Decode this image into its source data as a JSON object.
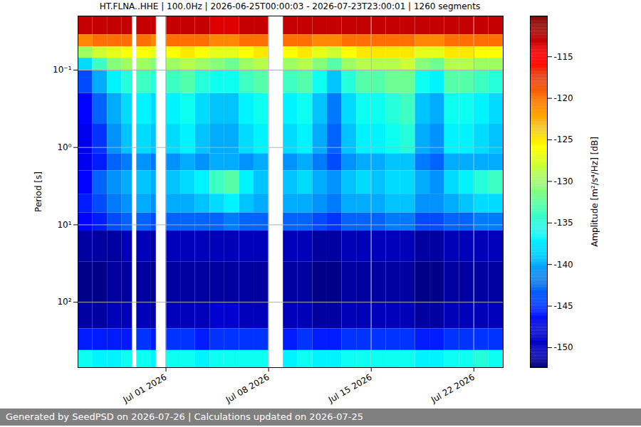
{
  "chart_data": {
    "type": "heatmap",
    "title": "HT.FLNA..HHE | 100.0Hz | 2026-06-25T00:00:03 - 2026-07-23T23:00:01 | 1260 segments",
    "caption": "Generated by SeedPSD on 2026-07-26 | Calculations updated on 2026-07-25",
    "y_label": "Period [s]",
    "log": "y",
    "grid": true,
    "xlim": [
      "2026-06-25",
      "2026-07-24"
    ],
    "xticks": [
      {
        "value": "2026-07-01",
        "label": "Jul 01 2026"
      },
      {
        "value": "2026-07-08",
        "label": "Jul 08 2026"
      },
      {
        "value": "2026-07-15",
        "label": "Jul 15 2026"
      },
      {
        "value": "2026-07-22",
        "label": "Jul 22 2026"
      }
    ],
    "ylim": [
      0.02,
      700
    ],
    "yticks": [
      {
        "value": 0.1,
        "label": "10⁻¹"
      },
      {
        "value": 1,
        "label": "10⁰"
      },
      {
        "value": 10,
        "label": "10¹"
      },
      {
        "value": 100,
        "label": "10²"
      }
    ],
    "x_bins": [
      "2026-06-25",
      "2026-06-26",
      "2026-06-27",
      "2026-06-28",
      "2026-06-28T17:00Z",
      "2026-06-29",
      "2026-06-30",
      "2026-06-30T08:00Z",
      "2026-07-01",
      "2026-07-02",
      "2026-07-03",
      "2026-07-04",
      "2026-07-05",
      "2026-07-06",
      "2026-07-07",
      "2026-07-08",
      "2026-07-09",
      "2026-07-10",
      "2026-07-11",
      "2026-07-12",
      "2026-07-13",
      "2026-07-14",
      "2026-07-15",
      "2026-07-16",
      "2026-07-17",
      "2026-07-18",
      "2026-07-19",
      "2026-07-20",
      "2026-07-21",
      "2026-07-22",
      "2026-07-23",
      "2026-07-24"
    ],
    "y_bins": [
      0.02,
      0.035,
      0.05,
      0.07,
      0.1,
      0.2,
      0.5,
      1.2,
      2,
      4,
      7,
      12,
      30,
      100,
      220,
      420,
      700
    ],
    "values": [
      [
        -113,
        -121,
        -130,
        -138,
        -144,
        -147,
        -148,
        -148,
        -147,
        -146,
        -147,
        -151,
        -152,
        -151,
        -146,
        -136
      ],
      [
        -113,
        -120,
        -128,
        -134,
        -140,
        -143,
        -145,
        -146,
        -143,
        -144,
        -146,
        -151,
        -152,
        -151,
        -146,
        -137
      ],
      [
        -113,
        -120,
        -127,
        -131,
        -137,
        -140,
        -141,
        -143,
        -141,
        -142,
        -144,
        -151,
        -151,
        -150,
        -146,
        -137
      ],
      [
        -113,
        -120,
        -126,
        -130,
        -135,
        -138,
        -139,
        -142,
        -140,
        -141,
        -143,
        -150,
        -151,
        -150,
        -146,
        -136
      ],
      null,
      [
        -113,
        -120,
        -126,
        -130,
        -134,
        -137,
        -138,
        -141,
        -139,
        -140,
        -143,
        -150,
        -151,
        -150,
        -145,
        -136
      ],
      [
        -113,
        -121,
        -127,
        -131,
        -135,
        -138,
        -139,
        -142,
        -140,
        -141,
        -144,
        -151,
        -152,
        -151,
        -146,
        -137
      ],
      null,
      [
        -113,
        -120,
        -126,
        -130,
        -134,
        -137,
        -138,
        -141,
        -139,
        -140,
        -143,
        -150,
        -151,
        -150,
        -145,
        -136
      ],
      [
        -113,
        -120,
        -125,
        -129,
        -133,
        -136,
        -137,
        -140,
        -138,
        -140,
        -143,
        -150,
        -151,
        -150,
        -145,
        -136
      ],
      [
        -113,
        -120,
        -126,
        -130,
        -135,
        -138,
        -139,
        -141,
        -137,
        -139,
        -143,
        -150,
        -151,
        -150,
        -146,
        -137
      ],
      [
        -114,
        -121,
        -127,
        -131,
        -136,
        -139,
        -140,
        -140,
        -134,
        -138,
        -143,
        -150,
        -151,
        -149,
        -145,
        -136
      ],
      [
        -114,
        -121,
        -127,
        -132,
        -136,
        -139,
        -140,
        -140,
        -133,
        -137,
        -142,
        -150,
        -151,
        -149,
        -145,
        -136
      ],
      [
        -113,
        -120,
        -126,
        -130,
        -134,
        -137,
        -138,
        -141,
        -137,
        -139,
        -143,
        -150,
        -151,
        -150,
        -145,
        -136
      ],
      [
        -113,
        -120,
        -125,
        -129,
        -133,
        -136,
        -137,
        -140,
        -139,
        -140,
        -143,
        -150,
        -151,
        -150,
        -145,
        -136
      ],
      null,
      [
        -113,
        -120,
        -126,
        -130,
        -134,
        -137,
        -138,
        -141,
        -139,
        -140,
        -143,
        -150,
        -151,
        -150,
        -146,
        -137
      ],
      [
        -113,
        -120,
        -125,
        -129,
        -133,
        -136,
        -137,
        -140,
        -138,
        -140,
        -143,
        -150,
        -151,
        -150,
        -145,
        -136
      ],
      [
        -113,
        -121,
        -127,
        -131,
        -136,
        -139,
        -140,
        -142,
        -140,
        -141,
        -144,
        -151,
        -152,
        -151,
        -146,
        -137
      ],
      [
        -113,
        -121,
        -128,
        -133,
        -139,
        -142,
        -143,
        -144,
        -141,
        -142,
        -145,
        -151,
        -152,
        -151,
        -146,
        -137
      ],
      [
        -113,
        -120,
        -126,
        -130,
        -135,
        -138,
        -139,
        -141,
        -139,
        -140,
        -143,
        -150,
        -151,
        -150,
        -145,
        -136
      ],
      [
        -113,
        -120,
        -125,
        -129,
        -133,
        -136,
        -137,
        -140,
        -138,
        -140,
        -143,
        -150,
        -151,
        -150,
        -145,
        -136
      ],
      [
        -113,
        -120,
        -125,
        -129,
        -133,
        -136,
        -137,
        -140,
        -139,
        -140,
        -143,
        -150,
        -151,
        -150,
        -145,
        -136
      ],
      [
        -113,
        -120,
        -125,
        -129,
        -132,
        -135,
        -136,
        -139,
        -138,
        -139,
        -142,
        -150,
        -151,
        -150,
        -145,
        -136
      ],
      [
        -113,
        -120,
        -125,
        -128,
        -132,
        -134,
        -135,
        -139,
        -138,
        -139,
        -142,
        -150,
        -151,
        -150,
        -145,
        -136
      ],
      [
        -113,
        -121,
        -127,
        -131,
        -136,
        -139,
        -140,
        -142,
        -140,
        -141,
        -144,
        -151,
        -152,
        -151,
        -146,
        -137
      ],
      [
        -113,
        -121,
        -127,
        -132,
        -137,
        -140,
        -141,
        -143,
        -141,
        -141,
        -144,
        -151,
        -152,
        -151,
        -146,
        -137
      ],
      [
        -113,
        -120,
        -125,
        -129,
        -133,
        -136,
        -137,
        -140,
        -138,
        -140,
        -143,
        -150,
        -151,
        -150,
        -145,
        -136
      ],
      [
        -113,
        -120,
        -125,
        -129,
        -133,
        -136,
        -137,
        -140,
        -137,
        -139,
        -143,
        -150,
        -151,
        -150,
        -145,
        -136
      ],
      [
        -113,
        -120,
        -126,
        -130,
        -134,
        -137,
        -138,
        -140,
        -135,
        -138,
        -142,
        -150,
        -151,
        -150,
        -145,
        -135
      ],
      [
        -113,
        -120,
        -126,
        -130,
        -135,
        -138,
        -139,
        -140,
        -134,
        -138,
        -142,
        -150,
        -151,
        -150,
        -145,
        -136
      ]
    ],
    "colorbar": {
      "range": [
        -152.4,
        -110.1
      ],
      "ticks": [
        -150,
        -145,
        -140,
        -135,
        -130,
        -125,
        -120,
        -115
      ],
      "label": "Amplitude [m²/s⁴/Hz] [dB]"
    }
  }
}
